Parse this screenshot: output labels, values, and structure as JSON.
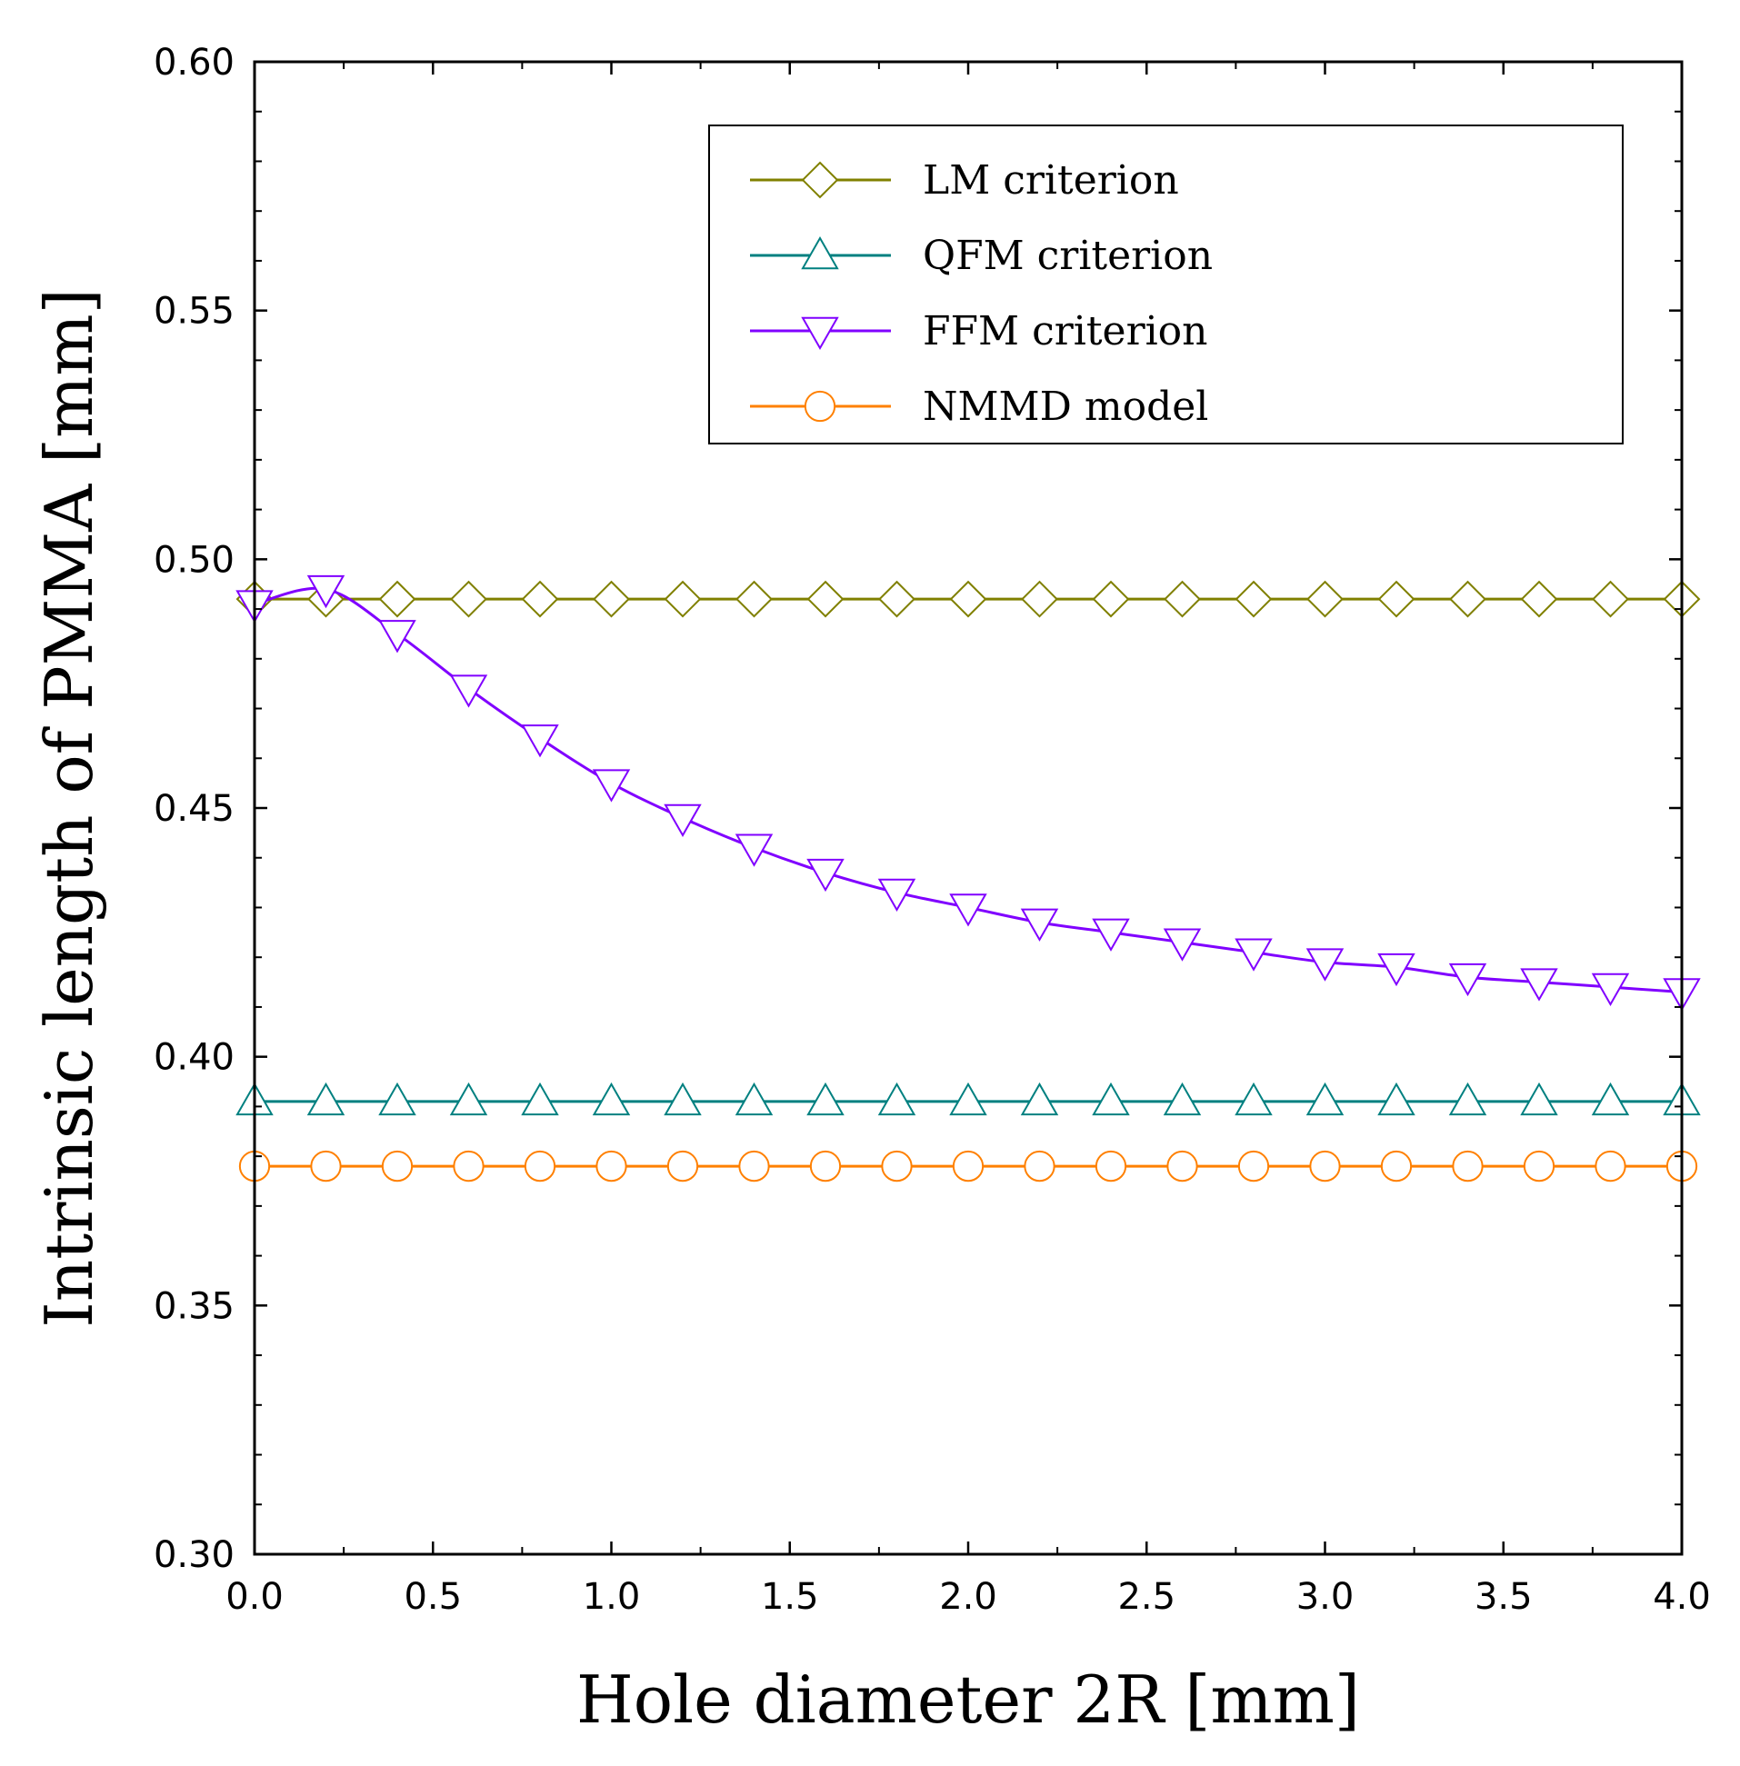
{
  "chart_data": {
    "type": "line",
    "title": "",
    "xlabel": "Hole diameter 2R [mm]",
    "ylabel": "Intrinsic length of PMMA [mm]",
    "xlim": [
      0.0,
      4.0
    ],
    "ylim": [
      0.3,
      0.6
    ],
    "x_ticks": [
      "0.0",
      "0.5",
      "1.0",
      "1.5",
      "2.0",
      "2.5",
      "3.0",
      "3.5",
      "4.0"
    ],
    "y_ticks": [
      "0.30",
      "0.35",
      "0.40",
      "0.45",
      "0.50",
      "0.55",
      "0.60"
    ],
    "grid": false,
    "legend_position": "top-right",
    "x": [
      0.0,
      0.2,
      0.4,
      0.6,
      0.8,
      1.0,
      1.2,
      1.4,
      1.6,
      1.8,
      2.0,
      2.2,
      2.4,
      2.6,
      2.8,
      3.0,
      3.2,
      3.4,
      3.6,
      3.8,
      4.0
    ],
    "series": [
      {
        "name": "LM criterion",
        "color": "#808000",
        "marker": "diamond",
        "values": [
          0.492,
          0.492,
          0.492,
          0.492,
          0.492,
          0.492,
          0.492,
          0.492,
          0.492,
          0.492,
          0.492,
          0.492,
          0.492,
          0.492,
          0.492,
          0.492,
          0.492,
          0.492,
          0.492,
          0.492,
          0.492
        ]
      },
      {
        "name": "QFM criterion",
        "color": "#008080",
        "marker": "triangle-up",
        "values": [
          0.391,
          0.391,
          0.391,
          0.391,
          0.391,
          0.391,
          0.391,
          0.391,
          0.391,
          0.391,
          0.391,
          0.391,
          0.391,
          0.391,
          0.391,
          0.391,
          0.391,
          0.391,
          0.391,
          0.391,
          0.391
        ]
      },
      {
        "name": "FFM criterion",
        "color": "#8000ff",
        "marker": "triangle-down",
        "values": [
          0.491,
          0.494,
          0.485,
          0.474,
          0.464,
          0.455,
          0.448,
          0.442,
          0.437,
          0.433,
          0.43,
          0.427,
          0.425,
          0.423,
          0.421,
          0.419,
          0.418,
          0.416,
          0.415,
          0.414,
          0.413
        ]
      },
      {
        "name": "NMMD model",
        "color": "#ff8000",
        "marker": "circle",
        "values": [
          0.378,
          0.378,
          0.378,
          0.378,
          0.378,
          0.378,
          0.378,
          0.378,
          0.378,
          0.378,
          0.378,
          0.378,
          0.378,
          0.378,
          0.378,
          0.378,
          0.378,
          0.378,
          0.378,
          0.378,
          0.378
        ]
      }
    ]
  }
}
